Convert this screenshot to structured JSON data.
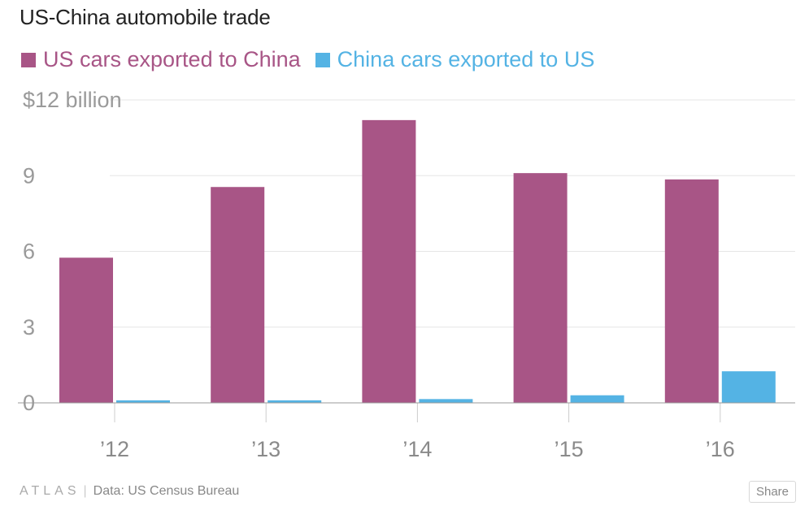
{
  "chart_data": {
    "type": "bar",
    "title": "US-China automobile trade",
    "categories": [
      "’12",
      "’13",
      "’14",
      "’15",
      "’16"
    ],
    "series": [
      {
        "name": "US cars exported to China",
        "color": "#a85586",
        "values": [
          5.75,
          8.55,
          11.2,
          9.1,
          8.85
        ]
      },
      {
        "name": "China cars exported to US",
        "color": "#54b3e4",
        "values": [
          0.1,
          0.1,
          0.15,
          0.3,
          1.25
        ]
      }
    ],
    "y_ticks": [
      "$12 billion",
      "9",
      "6",
      "3",
      "0"
    ],
    "y_tick_values": [
      12,
      9,
      6,
      3,
      0
    ],
    "ylim": [
      0,
      12
    ],
    "xlabel": "",
    "ylabel": ""
  },
  "footer": {
    "brand": "ATLAS",
    "separator": "|",
    "source": "Data:  US Census Bureau",
    "share_label": "Share"
  }
}
